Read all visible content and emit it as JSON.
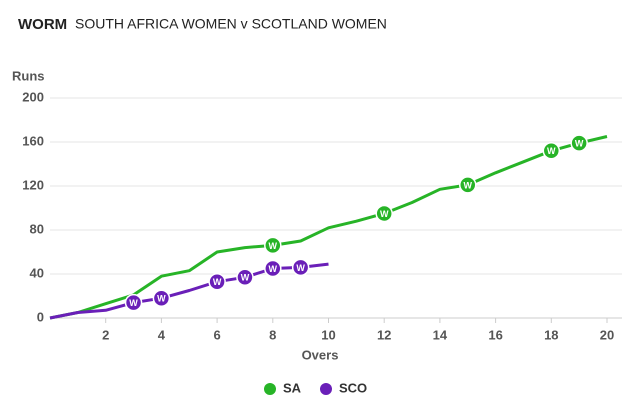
{
  "chart_data": {
    "type": "line",
    "title": "WORM",
    "subtitle": "SOUTH AFRICA WOMEN v SCOTLAND WOMEN",
    "y_label": "Runs",
    "x_label": "Overs",
    "wicket_label": "W",
    "x": [
      0,
      1,
      2,
      3,
      4,
      5,
      6,
      7,
      8,
      9,
      10,
      11,
      12,
      13,
      14,
      15,
      16,
      17,
      18,
      19,
      20
    ],
    "xlim": [
      0,
      20
    ],
    "xticks": [
      2,
      4,
      6,
      8,
      10,
      12,
      14,
      16,
      18,
      20
    ],
    "ylim": [
      0,
      200
    ],
    "yticks": [
      0,
      40,
      80,
      120,
      160,
      200
    ],
    "grid": true,
    "legend": "bottom",
    "series": [
      {
        "name": "SA",
        "color": "#27b427",
        "values": [
          0,
          5,
          13,
          21,
          38,
          43,
          60,
          64,
          66,
          70,
          82,
          88,
          95,
          105,
          117,
          121,
          132,
          142,
          152,
          159,
          165
        ],
        "wickets": [
          8,
          12,
          15,
          18,
          19
        ]
      },
      {
        "name": "SCO",
        "color": "#6a1fb8",
        "values": [
          0,
          5,
          7,
          14,
          18,
          25,
          33,
          37,
          45,
          46,
          49,
          null,
          null,
          null,
          null,
          null,
          null,
          null,
          null,
          null,
          null
        ],
        "wickets": [
          3,
          4,
          6,
          7,
          8,
          9
        ]
      }
    ]
  }
}
